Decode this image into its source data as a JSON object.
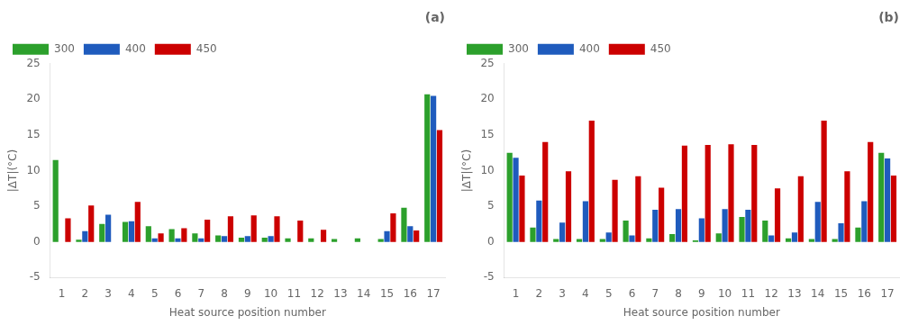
{
  "chart_data": [
    {
      "type": "bar",
      "title": "(a)",
      "x_label": "Heat source position number",
      "y_label": "|ΔT|(°C)",
      "categories": [
        "1",
        "2",
        "3",
        "4",
        "5",
        "6",
        "7",
        "8",
        "9",
        "10",
        "11",
        "12",
        "13",
        "14",
        "15",
        "16",
        "17"
      ],
      "series": [
        {
          "name": "300",
          "color": "#2ca02c",
          "values": [
            11.5,
            0.3,
            2.5,
            2.8,
            2.2,
            1.8,
            1.2,
            0.9,
            0.6,
            0.6,
            0.5,
            0.5,
            0.4,
            0.5,
            0.4,
            4.8,
            20.7
          ]
        },
        {
          "name": "400",
          "color": "#1f5bbd",
          "values": [
            0.0,
            1.5,
            3.8,
            2.9,
            0.5,
            0.5,
            0.5,
            0.8,
            0.8,
            0.8,
            0.0,
            0.0,
            0.0,
            0.0,
            1.5,
            2.2,
            20.5
          ]
        },
        {
          "name": "450",
          "color": "#cc0000",
          "values": [
            3.3,
            5.1,
            0.0,
            5.6,
            1.2,
            1.9,
            3.1,
            3.6,
            3.7,
            3.6,
            3.0,
            1.7,
            0.0,
            0.0,
            4.0,
            1.6,
            15.7
          ]
        }
      ],
      "ylim": [
        -5,
        25
      ],
      "yticks": [
        -5,
        0,
        5,
        10,
        15,
        20,
        25
      ],
      "grid": false,
      "legend": "upper left"
    },
    {
      "type": "bar",
      "title": "(b)",
      "x_label": "Heat source position number",
      "y_label": "|ΔT|(°C)",
      "categories": [
        "1",
        "2",
        "3",
        "4",
        "5",
        "6",
        "7",
        "8",
        "9",
        "10",
        "11",
        "12",
        "13",
        "14",
        "15",
        "16",
        "17"
      ],
      "series": [
        {
          "name": "300",
          "color": "#2ca02c",
          "values": [
            12.5,
            2.0,
            0.4,
            0.4,
            0.4,
            3.0,
            0.5,
            1.1,
            0.2,
            1.2,
            3.5,
            3.0,
            0.5,
            0.4,
            0.4,
            2.0,
            12.5
          ]
        },
        {
          "name": "400",
          "color": "#1f5bbd",
          "values": [
            11.8,
            5.8,
            2.7,
            5.7,
            1.3,
            0.9,
            4.5,
            4.6,
            3.3,
            4.6,
            4.5,
            0.9,
            1.3,
            5.6,
            2.6,
            5.7,
            11.7
          ]
        },
        {
          "name": "450",
          "color": "#cc0000",
          "values": [
            9.3,
            14.0,
            9.9,
            17.0,
            8.7,
            9.2,
            7.6,
            13.5,
            13.6,
            13.7,
            13.6,
            7.5,
            9.2,
            17.0,
            9.9,
            14.0,
            9.3
          ]
        }
      ],
      "ylim": [
        -5,
        25
      ],
      "yticks": [
        -5,
        0,
        5,
        10,
        15,
        20,
        25
      ],
      "grid": false,
      "legend": "upper left"
    }
  ]
}
